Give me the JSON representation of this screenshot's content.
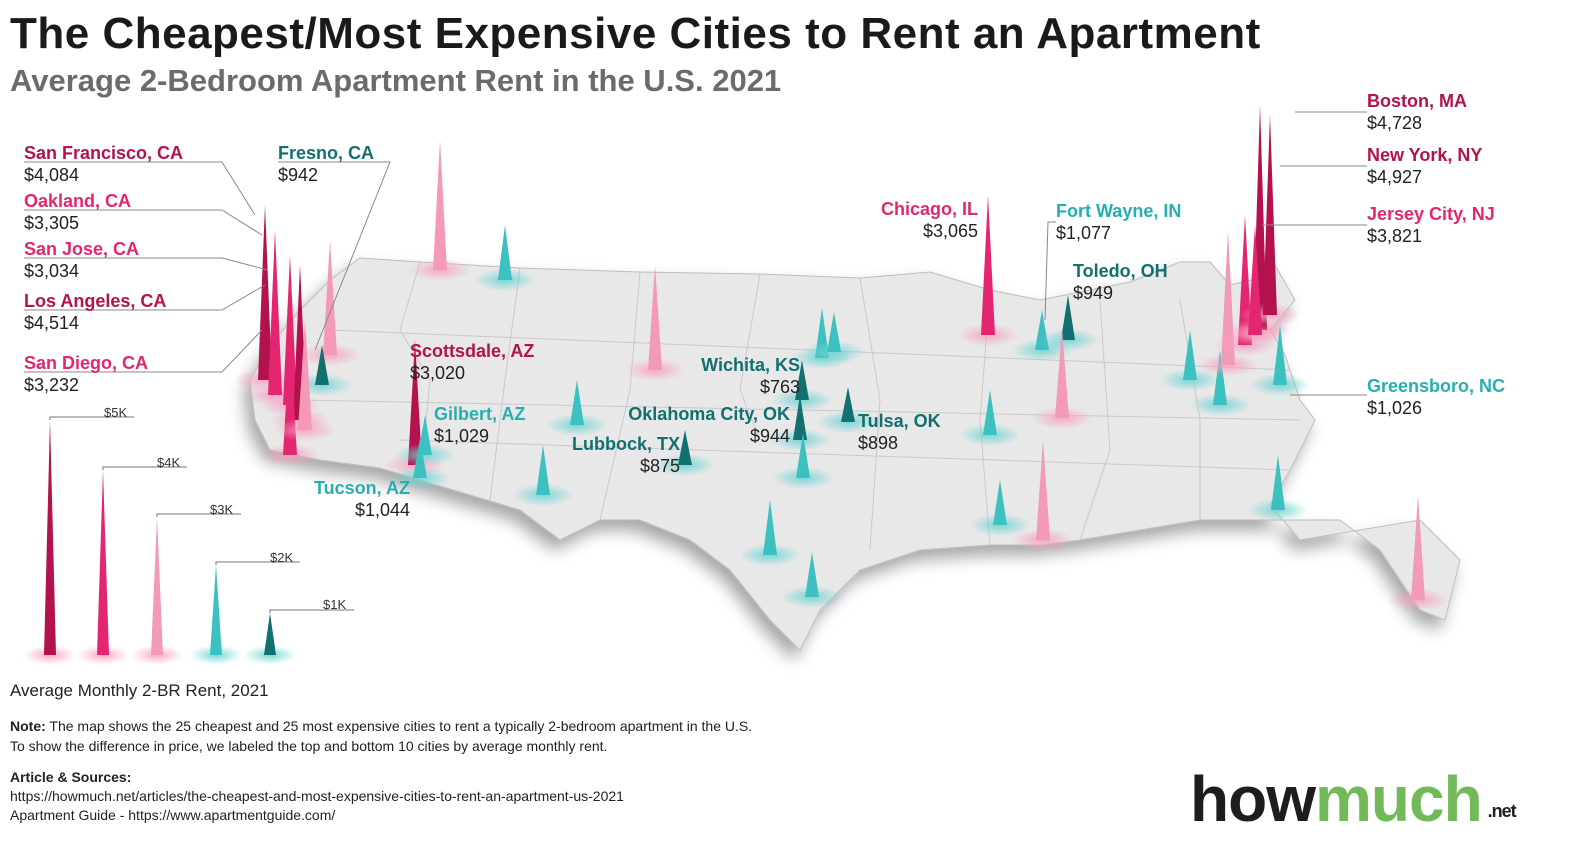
{
  "title": "The Cheapest/Most Expensive Cities to Rent an Apartment",
  "subtitle": "Average 2-Bedroom Apartment Rent in the U.S. 2021",
  "colors": {
    "most_expensive": "#b3124e",
    "expensive": "#e3266f",
    "light_pink": "#f49ab9",
    "cheap": "#27aeb0",
    "cheapest": "#11706f",
    "map": "#e6e6e6"
  },
  "cities": [
    {
      "name": "San Francisco, CA",
      "rent": "$4,084",
      "tone": "dark"
    },
    {
      "name": "Oakland, CA",
      "rent": "$3,305",
      "tone": "pink"
    },
    {
      "name": "San Jose, CA",
      "rent": "$3,034",
      "tone": "pink"
    },
    {
      "name": "Los Angeles, CA",
      "rent": "$4,514",
      "tone": "dark"
    },
    {
      "name": "San Diego, CA",
      "rent": "$3,232",
      "tone": "pink"
    },
    {
      "name": "Fresno, CA",
      "rent": "$942",
      "tone": "dteal"
    },
    {
      "name": "Scottsdale, AZ",
      "rent": "$3,020",
      "tone": "dark"
    },
    {
      "name": "Gilbert, AZ",
      "rent": "$1,029",
      "tone": "teal"
    },
    {
      "name": "Tucson, AZ",
      "rent": "$1,044",
      "tone": "teal"
    },
    {
      "name": "Lubbock, TX",
      "rent": "$875",
      "tone": "dteal"
    },
    {
      "name": "Oklahoma City, OK",
      "rent": "$944",
      "tone": "dteal"
    },
    {
      "name": "Wichita, KS",
      "rent": "$763",
      "tone": "dteal"
    },
    {
      "name": "Tulsa, OK",
      "rent": "$898",
      "tone": "dteal"
    },
    {
      "name": "Chicago, IL",
      "rent": "$3,065",
      "tone": "pink"
    },
    {
      "name": "Fort Wayne, IN",
      "rent": "$1,077",
      "tone": "teal"
    },
    {
      "name": "Toledo, OH",
      "rent": "$949",
      "tone": "dteal"
    },
    {
      "name": "Boston, MA",
      "rent": "$4,728",
      "tone": "dark"
    },
    {
      "name": "New York, NY",
      "rent": "$4,927",
      "tone": "dark"
    },
    {
      "name": "Jersey City, NJ",
      "rent": "$3,821",
      "tone": "pink"
    },
    {
      "name": "Greensboro, NC",
      "rent": "$1,026",
      "tone": "teal"
    }
  ],
  "legend": {
    "title": "Average Monthly 2-BR Rent, 2021",
    "ticks": [
      "$5K",
      "$4K",
      "$3K",
      "$2K",
      "$1K"
    ]
  },
  "note": {
    "label": "Note:",
    "line1": " The map shows the 25 cheapest and 25 most expensive cities to rent a typically 2-bedroom apartment in the U.S.",
    "line2": "To show the difference in price, we labeled the top and bottom 10 cities by average monthly rent."
  },
  "sources": {
    "label": "Article & Sources:",
    "article": "https://howmuch.net/articles/the-cheapest-and-most-expensive-cities-to-rent-an-apartment-us-2021",
    "guide": "Apartment Guide - https://www.apartmentguide.com/"
  },
  "logo": {
    "how": "how",
    "much": "much",
    "net": ".net"
  }
}
